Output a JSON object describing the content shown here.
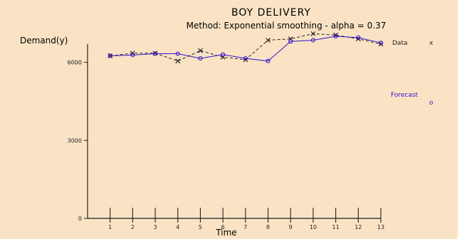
{
  "chart_data": {
    "type": "line",
    "title": "BOY DELIVERY",
    "subtitle": "Method: Exponential smoothing - alpha = 0.37",
    "xlabel": "Time",
    "ylabel": "Demand(y)",
    "x": [
      1,
      2,
      3,
      4,
      5,
      6,
      7,
      8,
      9,
      10,
      11,
      12,
      13
    ],
    "xlim": [
      0,
      13
    ],
    "ylim": [
      0,
      6700
    ],
    "yticks": [
      0,
      3000,
      6000
    ],
    "ytick_labels": [
      "0",
      "3000",
      "6000"
    ],
    "grid": false,
    "legend": "right",
    "series": [
      {
        "name": "Data",
        "marker": "x",
        "color": "#222222",
        "style": "dashed",
        "values": [
          6250,
          6350,
          6350,
          6050,
          6450,
          6200,
          6100,
          6850,
          6900,
          7100,
          7050,
          6900,
          6700
        ]
      },
      {
        "name": "Forecast",
        "marker": "o",
        "color": "#3311cc",
        "style": "solid",
        "values": [
          6250,
          6280,
          6330,
          6330,
          6150,
          6300,
          6150,
          6050,
          6800,
          6850,
          7000,
          6950,
          6750
        ]
      }
    ]
  },
  "legend": {
    "data_label": "Data",
    "data_marker": "x",
    "forecast_label": "Forecast",
    "forecast_marker": "o"
  }
}
